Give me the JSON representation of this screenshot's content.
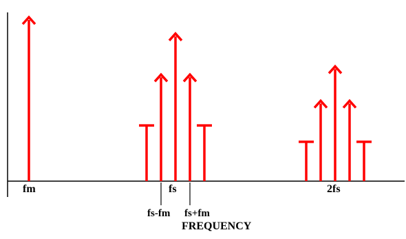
{
  "colors": {
    "spectral_line": "#ff0000",
    "axis": "#000000",
    "background": "#ffffff"
  },
  "labels": {
    "fm": "fm",
    "fs": "fs",
    "fs_minus_fm": "fs-fm",
    "fs_plus_fm": "fs+fm",
    "two_fs": "2fs",
    "x_axis": "FREQUENCY"
  },
  "chart_data": {
    "type": "bar",
    "description_of_marks": "frequency-domain spectral lines",
    "lines": [
      {
        "group": "baseband",
        "position": "fm",
        "relative_height": 1.0,
        "arrow": true
      },
      {
        "group": "fs",
        "position": "fs-2fm",
        "relative_height": 0.34,
        "arrow": false
      },
      {
        "group": "fs",
        "position": "fs-fm",
        "relative_height": 0.65,
        "arrow": true
      },
      {
        "group": "fs",
        "position": "fs",
        "relative_height": 0.9,
        "arrow": true
      },
      {
        "group": "fs",
        "position": "fs+fm",
        "relative_height": 0.65,
        "arrow": true
      },
      {
        "group": "fs",
        "position": "fs+2fm",
        "relative_height": 0.34,
        "arrow": false
      },
      {
        "group": "2fs",
        "position": "2fs-2fm",
        "relative_height": 0.24,
        "arrow": false
      },
      {
        "group": "2fs",
        "position": "2fs-fm",
        "relative_height": 0.49,
        "arrow": true
      },
      {
        "group": "2fs",
        "position": "2fs",
        "relative_height": 0.7,
        "arrow": true
      },
      {
        "group": "2fs",
        "position": "2fs+fm",
        "relative_height": 0.49,
        "arrow": true
      },
      {
        "group": "2fs",
        "position": "2fs+2fm",
        "relative_height": 0.24,
        "arrow": false
      }
    ],
    "xlabel": "FREQUENCY",
    "ylabel": ""
  }
}
